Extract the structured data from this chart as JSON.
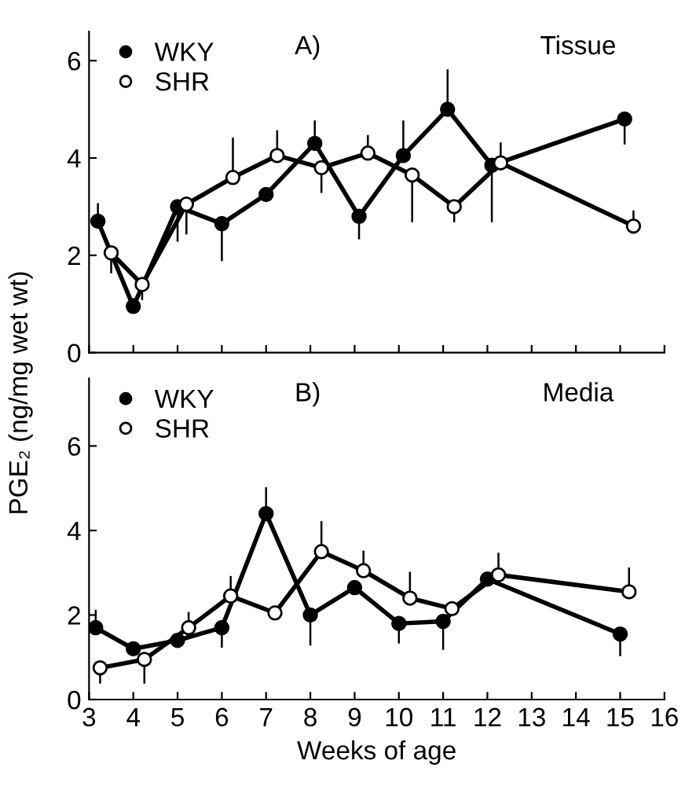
{
  "chart_data": [
    {
      "type": "line",
      "ylabel": "PGE₂ (ng/mg wet wt)",
      "annotations": [
        "A)",
        "Tissue"
      ],
      "xlim": [
        3,
        16
      ],
      "xticks": [
        3,
        4,
        5,
        6,
        7,
        8,
        9,
        10,
        11,
        12,
        13,
        14,
        15,
        16
      ],
      "ylim": [
        0,
        6.6
      ],
      "yticks": [
        0,
        2,
        4,
        6
      ],
      "tick_labels": "y",
      "legend": "top left",
      "marker": "circle",
      "line_style": "solid",
      "grid": false,
      "series": [
        {
          "name": "WKY",
          "color": "#000000",
          "x": [
            3.2,
            4,
            5,
            6,
            7,
            8.1,
            9.1,
            10.1,
            11.1,
            12.1,
            15.1
          ],
          "values": [
            2.7,
            0.95,
            3.0,
            2.65,
            3.25,
            4.3,
            2.8,
            4.05,
            5.0,
            3.85,
            4.8
          ],
          "errors": [
            [
              2.7,
              3.05
            ],
            [
              0.95,
              1.1
            ],
            [
              2.3,
              3.0
            ],
            [
              1.9,
              2.65
            ],
            null,
            [
              4.3,
              4.75
            ],
            [
              2.35,
              2.8
            ],
            [
              4.05,
              4.75
            ],
            [
              5.0,
              5.8
            ],
            [
              2.7,
              3.85
            ],
            [
              4.3,
              4.8
            ]
          ]
        },
        {
          "name": "SHR",
          "color": "#000000",
          "x": [
            3.5,
            4.2,
            5.2,
            6.25,
            7.25,
            8.25,
            9.3,
            10.3,
            11.25,
            12.3,
            15.3
          ],
          "values": [
            2.05,
            1.4,
            3.05,
            3.6,
            4.05,
            3.8,
            4.1,
            3.65,
            3.0,
            3.9,
            2.6
          ],
          "errors": [
            [
              1.65,
              2.05
            ],
            [
              1.1,
              1.4
            ],
            [
              2.45,
              3.05
            ],
            [
              3.6,
              4.4
            ],
            [
              4.05,
              4.55
            ],
            [
              3.3,
              3.8
            ],
            [
              4.1,
              4.45
            ],
            [
              2.7,
              3.65
            ],
            [
              2.7,
              3.0
            ],
            [
              3.9,
              4.3
            ],
            [
              2.6,
              2.9
            ]
          ]
        }
      ]
    },
    {
      "type": "line",
      "xlabel": "Weeks of age",
      "annotations": [
        "B)",
        "Media"
      ],
      "xlim": [
        3,
        16
      ],
      "xticks": [
        3,
        4,
        5,
        6,
        7,
        8,
        9,
        10,
        11,
        12,
        13,
        14,
        15,
        16
      ],
      "ylim": [
        0,
        7.6
      ],
      "yticks": [
        0,
        2,
        4,
        6
      ],
      "legend": "top left",
      "marker": "circle",
      "line_style": "solid",
      "grid": false,
      "series": [
        {
          "name": "WKY",
          "color": "#000000",
          "x": [
            3.15,
            4,
            5,
            6,
            7,
            8,
            9,
            10,
            11,
            12,
            15
          ],
          "values": [
            1.7,
            1.2,
            1.4,
            1.7,
            4.4,
            2.0,
            2.65,
            1.8,
            1.85,
            2.85,
            1.55
          ],
          "errors": [
            [
              1.7,
              2.1
            ],
            null,
            null,
            [
              1.25,
              1.7
            ],
            [
              4.4,
              5.0
            ],
            [
              1.3,
              2.0
            ],
            null,
            [
              1.35,
              1.8
            ],
            [
              1.2,
              1.85
            ],
            null,
            [
              1.05,
              1.55
            ]
          ]
        },
        {
          "name": "SHR",
          "color": "#000000",
          "x": [
            3.25,
            4.25,
            5.25,
            6.2,
            7.2,
            8.25,
            9.2,
            10.25,
            11.2,
            12.25,
            15.2
          ],
          "values": [
            0.75,
            0.95,
            1.7,
            2.45,
            2.05,
            3.5,
            3.05,
            2.4,
            2.15,
            2.95,
            2.55
          ],
          "errors": [
            [
              0.4,
              0.75
            ],
            [
              0.4,
              0.95
            ],
            [
              1.7,
              2.05
            ],
            [
              2.45,
              2.9
            ],
            null,
            [
              3.5,
              4.2
            ],
            [
              3.05,
              3.5
            ],
            [
              2.4,
              3.0
            ],
            null,
            [
              2.95,
              3.45
            ],
            [
              2.55,
              3.1
            ]
          ]
        }
      ]
    }
  ]
}
